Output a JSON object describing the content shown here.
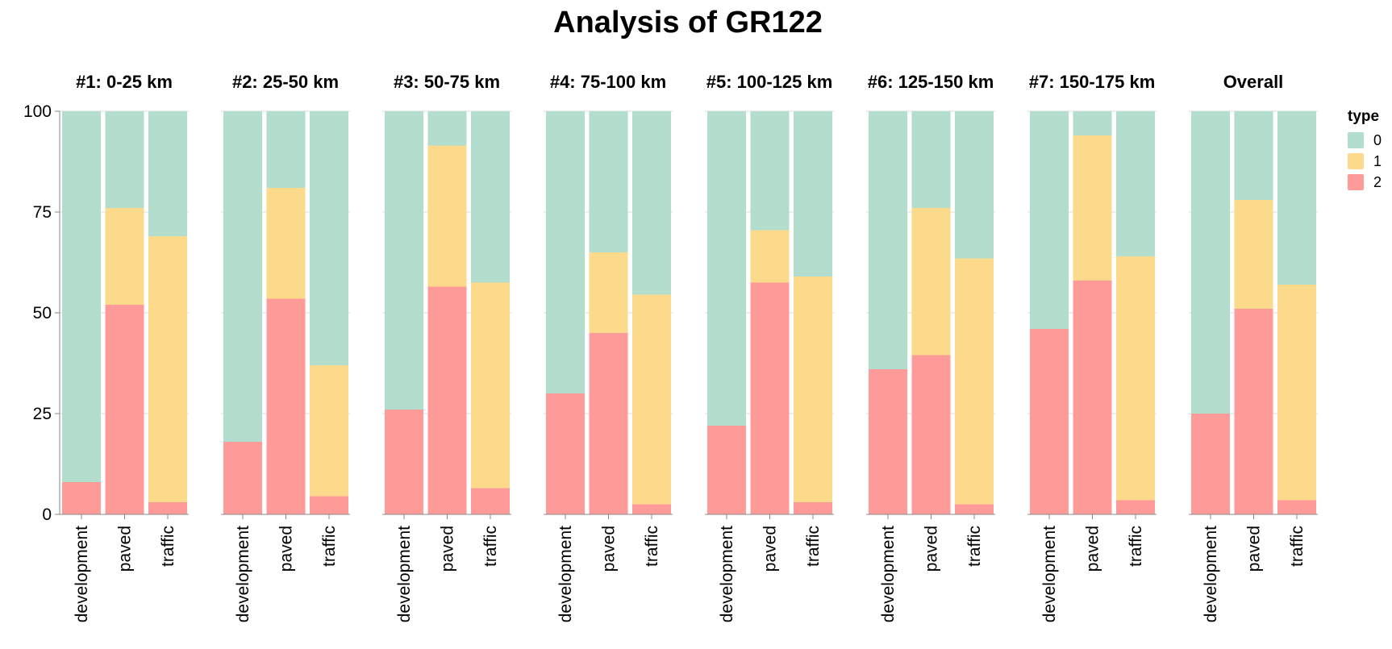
{
  "chart_data": {
    "type": "bar",
    "stacked": true,
    "normalized": true,
    "title": "Analysis of GR122",
    "ylim": [
      0,
      100
    ],
    "y_ticks": [
      0,
      25,
      50,
      75,
      100
    ],
    "grid": true,
    "legend": {
      "title": "type",
      "placement": "right",
      "entries": [
        {
          "label": "0",
          "color": "#b3ddcc"
        },
        {
          "label": "1",
          "color": "#fdda8b"
        },
        {
          "label": "2",
          "color": "#fe9a98"
        }
      ]
    },
    "categories": [
      "development",
      "paved",
      "traffic"
    ],
    "facets": [
      {
        "title": "#1: 0-25 km",
        "type_2": [
          8,
          52,
          3
        ],
        "type_1": [
          0,
          24,
          66
        ]
      },
      {
        "title": "#2: 25-50 km",
        "type_2": [
          18,
          53.5,
          4.5
        ],
        "type_1": [
          0,
          27.5,
          32.5
        ]
      },
      {
        "title": "#3: 50-75 km",
        "type_2": [
          26,
          56.5,
          6.5
        ],
        "type_1": [
          0,
          35,
          51
        ]
      },
      {
        "title": "#4: 75-100 km",
        "type_2": [
          30,
          45,
          2.5
        ],
        "type_1": [
          0,
          20,
          52
        ]
      },
      {
        "title": "#5: 100-125 km",
        "type_2": [
          22,
          57.5,
          3
        ],
        "type_1": [
          0,
          13,
          56
        ]
      },
      {
        "title": "#6: 125-150 km",
        "type_2": [
          36,
          39.5,
          2.5
        ],
        "type_1": [
          0,
          36.5,
          61
        ]
      },
      {
        "title": "#7: 150-175 km",
        "type_2": [
          46,
          58,
          3.5
        ],
        "type_1": [
          0,
          36,
          60.5
        ]
      },
      {
        "title": "Overall",
        "type_2": [
          25,
          51,
          3.5
        ],
        "type_1": [
          0,
          27,
          53.5
        ]
      }
    ]
  }
}
